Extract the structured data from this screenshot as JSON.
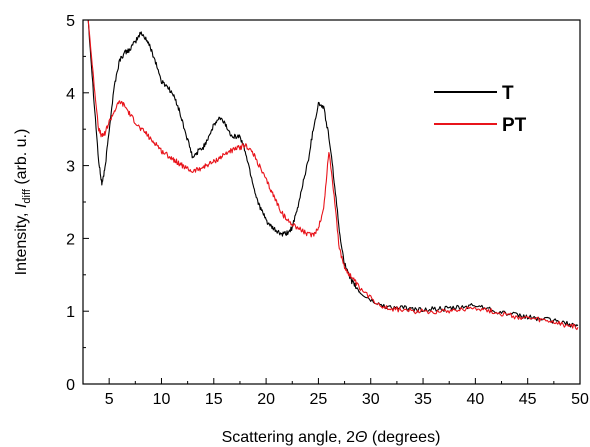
{
  "chart_data": {
    "type": "line",
    "xlabel": "Scattering angle, 2Θ (degrees)",
    "xlabel_parts": {
      "prefix": "Scattering angle, 2",
      "symbol": "Θ",
      "suffix": " (degrees)"
    },
    "ylabel": "Intensity, I_diff (arb. u.)",
    "ylabel_parts": {
      "prefix": "Intensity, ",
      "symbol": "I",
      "subscript": "diff",
      "suffix": " (arb. u.)"
    },
    "xlim": [
      2.5,
      50
    ],
    "ylim": [
      0,
      5
    ],
    "xticks": [
      5,
      10,
      15,
      20,
      25,
      30,
      35,
      40,
      45,
      50
    ],
    "yticks": [
      0,
      1,
      2,
      3,
      4,
      5
    ],
    "grid": false,
    "legend_position": "top-right",
    "series": [
      {
        "name": "T",
        "color": "#000000",
        "x": [
          3.0,
          3.5,
          4.0,
          4.3,
          4.6,
          5.0,
          5.5,
          6.0,
          6.5,
          7.0,
          7.5,
          8.0,
          8.5,
          9.0,
          9.5,
          10.0,
          10.5,
          11.0,
          11.5,
          12.0,
          12.5,
          13.0,
          13.5,
          14.0,
          14.5,
          15.0,
          15.5,
          16.0,
          16.5,
          17.0,
          17.5,
          18.0,
          18.5,
          19.0,
          19.5,
          20.0,
          20.5,
          21.0,
          21.5,
          22.0,
          22.5,
          23.0,
          23.5,
          24.0,
          24.5,
          25.0,
          25.5,
          26.0,
          26.5,
          27.0,
          27.5,
          28.0,
          28.5,
          29.0,
          30.0,
          31.0,
          32.0,
          33.0,
          34.0,
          35.0,
          36.0,
          37.0,
          38.0,
          39.0,
          40.0,
          41.0,
          42.0,
          43.0,
          44.0,
          45.0,
          46.0,
          47.0,
          48.0,
          49.0,
          49.8
        ],
        "y": [
          5.0,
          4.0,
          3.05,
          2.75,
          2.95,
          3.5,
          4.1,
          4.45,
          4.55,
          4.6,
          4.7,
          4.82,
          4.75,
          4.6,
          4.4,
          4.15,
          4.1,
          4.0,
          3.85,
          3.6,
          3.35,
          3.1,
          3.2,
          3.25,
          3.4,
          3.55,
          3.65,
          3.6,
          3.45,
          3.4,
          3.4,
          3.2,
          2.9,
          2.6,
          2.4,
          2.25,
          2.15,
          2.1,
          2.05,
          2.07,
          2.15,
          2.4,
          2.75,
          3.05,
          3.5,
          3.85,
          3.8,
          3.4,
          2.8,
          2.1,
          1.65,
          1.45,
          1.35,
          1.25,
          1.15,
          1.08,
          1.05,
          1.05,
          1.02,
          1.02,
          1.03,
          1.03,
          1.04,
          1.06,
          1.08,
          1.05,
          1.0,
          0.97,
          0.94,
          0.92,
          0.9,
          0.88,
          0.85,
          0.82,
          0.8
        ]
      },
      {
        "name": "PT",
        "color": "#e8141b",
        "x": [
          3.0,
          3.5,
          4.0,
          4.3,
          4.6,
          5.0,
          5.5,
          6.0,
          6.5,
          7.0,
          7.5,
          8.0,
          8.5,
          9.0,
          9.5,
          10.0,
          10.5,
          11.0,
          11.5,
          12.0,
          12.5,
          13.0,
          13.5,
          14.0,
          14.5,
          15.0,
          15.5,
          16.0,
          16.5,
          17.0,
          17.5,
          18.0,
          18.5,
          19.0,
          19.5,
          20.0,
          20.5,
          21.0,
          21.5,
          22.0,
          22.5,
          23.0,
          23.5,
          24.0,
          24.5,
          25.0,
          25.5,
          26.0,
          26.5,
          27.0,
          27.5,
          28.0,
          28.5,
          29.0,
          30.0,
          31.0,
          32.0,
          33.0,
          34.0,
          35.0,
          36.0,
          37.0,
          38.0,
          39.0,
          40.0,
          41.0,
          42.0,
          43.0,
          44.0,
          45.0,
          46.0,
          47.0,
          48.0,
          49.0,
          49.8
        ],
        "y": [
          5.0,
          4.2,
          3.5,
          3.4,
          3.45,
          3.6,
          3.75,
          3.88,
          3.82,
          3.7,
          3.6,
          3.5,
          3.45,
          3.35,
          3.3,
          3.2,
          3.15,
          3.1,
          3.05,
          3.0,
          2.95,
          2.92,
          2.95,
          2.98,
          3.02,
          3.05,
          3.1,
          3.15,
          3.2,
          3.22,
          3.25,
          3.28,
          3.22,
          3.1,
          2.95,
          2.8,
          2.65,
          2.5,
          2.35,
          2.25,
          2.2,
          2.15,
          2.1,
          2.05,
          2.05,
          2.15,
          2.4,
          3.2,
          2.6,
          1.85,
          1.6,
          1.5,
          1.4,
          1.3,
          1.18,
          1.08,
          1.03,
          1.02,
          1.0,
          1.0,
          1.0,
          1.0,
          1.02,
          1.03,
          1.05,
          1.02,
          0.98,
          0.95,
          0.92,
          0.9,
          0.88,
          0.86,
          0.83,
          0.8,
          0.78
        ]
      }
    ]
  }
}
